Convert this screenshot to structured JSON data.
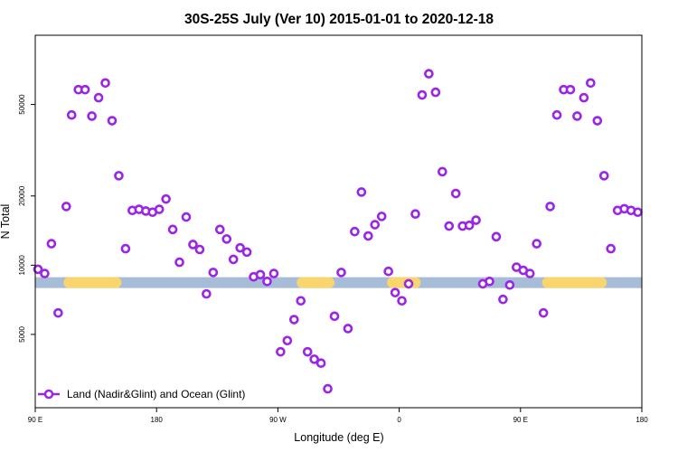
{
  "chart_data": {
    "type": "scatter",
    "title": "30S-25S July (Ver 10)   2015-01-01 to 2020-12-18",
    "xlabel": "Longitude (deg E)",
    "ylabel": "N Total",
    "y_scale": "log",
    "xlim": [
      90,
      540
    ],
    "ylim": [
      2400,
      100000
    ],
    "x_ticks": [
      {
        "value": 90,
        "label": "90 E"
      },
      {
        "value": 180,
        "label": "180"
      },
      {
        "value": 270,
        "label": "90 W"
      },
      {
        "value": 360,
        "label": "0"
      },
      {
        "value": 450,
        "label": "90 E"
      },
      {
        "value": 540,
        "label": "180"
      }
    ],
    "y_ticks": [
      {
        "value": 5000,
        "label": "5000"
      },
      {
        "value": 10000,
        "label": "10000"
      },
      {
        "value": 20000,
        "label": "20000"
      },
      {
        "value": 50000,
        "label": "50000"
      }
    ],
    "grid": false,
    "legend_position": "bottom-left",
    "surface_band": {
      "level": 8400,
      "ocean_color": "#a7bcd6",
      "land_color": "#f9d56e",
      "land_ranges": [
        [
          115,
          150
        ],
        [
          288,
          308
        ],
        [
          355,
          372
        ],
        [
          470,
          510
        ]
      ]
    },
    "series": [
      {
        "name": "Land (Nadir&Glint) and Ocean (Glint)",
        "color": "#9a25e8",
        "points": [
          {
            "x": 92,
            "y": 9600
          },
          {
            "x": 97,
            "y": 9200
          },
          {
            "x": 102,
            "y": 12400
          },
          {
            "x": 107,
            "y": 6200
          },
          {
            "x": 113,
            "y": 18000
          },
          {
            "x": 117,
            "y": 45000
          },
          {
            "x": 122,
            "y": 58000
          },
          {
            "x": 127,
            "y": 58000
          },
          {
            "x": 132,
            "y": 44500
          },
          {
            "x": 137,
            "y": 53500
          },
          {
            "x": 142,
            "y": 62000
          },
          {
            "x": 147,
            "y": 42500
          },
          {
            "x": 152,
            "y": 24500
          },
          {
            "x": 157,
            "y": 11800
          },
          {
            "x": 162,
            "y": 17300
          },
          {
            "x": 167,
            "y": 17500
          },
          {
            "x": 172,
            "y": 17200
          },
          {
            "x": 177,
            "y": 17000
          },
          {
            "x": 182,
            "y": 17500
          },
          {
            "x": 187,
            "y": 19400
          },
          {
            "x": 192,
            "y": 14300
          },
          {
            "x": 197,
            "y": 10300
          },
          {
            "x": 202,
            "y": 16200
          },
          {
            "x": 207,
            "y": 12300
          },
          {
            "x": 212,
            "y": 11700
          },
          {
            "x": 217,
            "y": 7500
          },
          {
            "x": 222,
            "y": 9300
          },
          {
            "x": 227,
            "y": 14300
          },
          {
            "x": 232,
            "y": 13000
          },
          {
            "x": 237,
            "y": 10600
          },
          {
            "x": 242,
            "y": 11900
          },
          {
            "x": 247,
            "y": 11400
          },
          {
            "x": 252,
            "y": 8900
          },
          {
            "x": 257,
            "y": 9100
          },
          {
            "x": 262,
            "y": 8500
          },
          {
            "x": 267,
            "y": 9200
          },
          {
            "x": 272,
            "y": 4200
          },
          {
            "x": 277,
            "y": 4700
          },
          {
            "x": 282,
            "y": 5800
          },
          {
            "x": 287,
            "y": 7000
          },
          {
            "x": 292,
            "y": 4200
          },
          {
            "x": 297,
            "y": 3900
          },
          {
            "x": 302,
            "y": 3750
          },
          {
            "x": 307,
            "y": 2900
          },
          {
            "x": 312,
            "y": 6000
          },
          {
            "x": 317,
            "y": 9300
          },
          {
            "x": 322,
            "y": 5300
          },
          {
            "x": 327,
            "y": 14000
          },
          {
            "x": 332,
            "y": 20800
          },
          {
            "x": 337,
            "y": 13400
          },
          {
            "x": 342,
            "y": 15000
          },
          {
            "x": 347,
            "y": 16300
          },
          {
            "x": 352,
            "y": 9400
          },
          {
            "x": 357,
            "y": 7600
          },
          {
            "x": 362,
            "y": 7000
          },
          {
            "x": 367,
            "y": 8300
          },
          {
            "x": 372,
            "y": 16700
          },
          {
            "x": 377,
            "y": 55000
          },
          {
            "x": 382,
            "y": 68000
          },
          {
            "x": 387,
            "y": 56500
          },
          {
            "x": 392,
            "y": 25500
          },
          {
            "x": 397,
            "y": 14800
          },
          {
            "x": 402,
            "y": 20500
          },
          {
            "x": 407,
            "y": 14800
          },
          {
            "x": 412,
            "y": 14900
          },
          {
            "x": 417,
            "y": 15700
          },
          {
            "x": 422,
            "y": 8300
          },
          {
            "x": 427,
            "y": 8500
          },
          {
            "x": 432,
            "y": 13300
          },
          {
            "x": 437,
            "y": 7100
          },
          {
            "x": 442,
            "y": 8200
          },
          {
            "x": 447,
            "y": 9800
          },
          {
            "x": 452,
            "y": 9500
          },
          {
            "x": 457,
            "y": 9200
          },
          {
            "x": 462,
            "y": 12400
          },
          {
            "x": 467,
            "y": 6200
          },
          {
            "x": 472,
            "y": 18000
          },
          {
            "x": 477,
            "y": 45000
          },
          {
            "x": 482,
            "y": 58000
          },
          {
            "x": 487,
            "y": 58000
          },
          {
            "x": 492,
            "y": 44500
          },
          {
            "x": 497,
            "y": 53500
          },
          {
            "x": 502,
            "y": 62000
          },
          {
            "x": 507,
            "y": 42500
          },
          {
            "x": 512,
            "y": 24500
          },
          {
            "x": 517,
            "y": 11800
          },
          {
            "x": 522,
            "y": 17300
          },
          {
            "x": 527,
            "y": 17600
          },
          {
            "x": 532,
            "y": 17300
          },
          {
            "x": 537,
            "y": 17000
          }
        ]
      }
    ]
  }
}
